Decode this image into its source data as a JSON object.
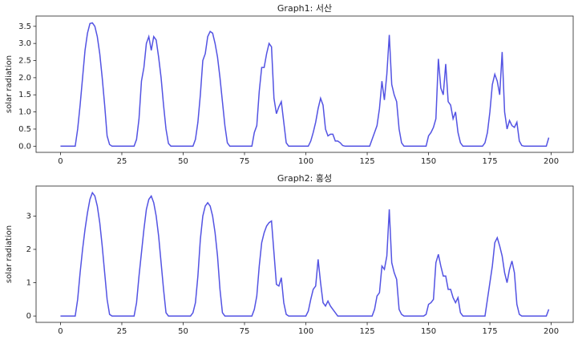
{
  "chart_data": [
    {
      "type": "line",
      "title": "Graph1: 서산",
      "ylabel": "solar radiation",
      "color": "#4040e0",
      "x": [
        0,
        6,
        7,
        8,
        9,
        10,
        11,
        12,
        13,
        14,
        15,
        16,
        17,
        18,
        19,
        20,
        21,
        30,
        31,
        32,
        33,
        34,
        35,
        36,
        37,
        38,
        39,
        40,
        41,
        42,
        43,
        44,
        45,
        54,
        55,
        56,
        57,
        58,
        59,
        60,
        61,
        62,
        63,
        64,
        65,
        66,
        67,
        68,
        69,
        78,
        79,
        80,
        81,
        82,
        83,
        84,
        85,
        86,
        87,
        88,
        89,
        90,
        91,
        92,
        93,
        101,
        102,
        103,
        104,
        105,
        106,
        107,
        108,
        109,
        110,
        111,
        112,
        113,
        114,
        115,
        116,
        126,
        127,
        128,
        129,
        130,
        131,
        132,
        133,
        134,
        135,
        136,
        137,
        138,
        139,
        140,
        149,
        150,
        151,
        152,
        153,
        154,
        155,
        156,
        157,
        158,
        159,
        160,
        161,
        162,
        163,
        164,
        172,
        173,
        174,
        175,
        176,
        177,
        178,
        179,
        180,
        181,
        182,
        183,
        184,
        185,
        186,
        187,
        188,
        189,
        198,
        199
      ],
      "values": [
        0,
        0,
        0.5,
        1.2,
        2.0,
        2.8,
        3.3,
        3.58,
        3.6,
        3.5,
        3.2,
        2.7,
        2.0,
        1.2,
        0.3,
        0.05,
        0,
        0,
        0.2,
        0.8,
        1.9,
        2.3,
        3.0,
        3.2,
        2.8,
        3.2,
        3.1,
        2.6,
        2.0,
        1.2,
        0.5,
        0.08,
        0,
        0,
        0.2,
        0.7,
        1.5,
        2.5,
        2.7,
        3.2,
        3.35,
        3.3,
        3.0,
        2.6,
        2.0,
        1.3,
        0.6,
        0.1,
        0,
        0,
        0.4,
        0.6,
        1.6,
        2.3,
        2.3,
        2.7,
        3.0,
        2.9,
        1.4,
        0.95,
        1.15,
        1.3,
        0.7,
        0.1,
        0,
        0,
        0.15,
        0.4,
        0.7,
        1.1,
        1.4,
        1.2,
        0.5,
        0.3,
        0.35,
        0.35,
        0.15,
        0.15,
        0.1,
        0.02,
        0,
        0,
        0.2,
        0.4,
        0.6,
        1.1,
        1.9,
        1.35,
        2.1,
        3.25,
        1.8,
        1.5,
        1.3,
        0.5,
        0.1,
        0,
        0,
        0.3,
        0.4,
        0.55,
        0.8,
        2.55,
        1.7,
        1.5,
        2.4,
        1.3,
        1.2,
        0.8,
        1.0,
        0.4,
        0.1,
        0,
        0,
        0.1,
        0.4,
        1.0,
        1.8,
        2.1,
        1.9,
        1.5,
        2.75,
        1.0,
        0.5,
        0.75,
        0.6,
        0.55,
        0.7,
        0.15,
        0.02,
        0,
        0,
        0.25
      ],
      "xlim": [
        -9.95,
        208.95
      ],
      "xticks": [
        0,
        25,
        50,
        75,
        100,
        125,
        150,
        175,
        200
      ],
      "ylim": [
        -0.18,
        3.8
      ],
      "yticks": [
        {
          "value": 0,
          "label": "0.0"
        },
        0.5,
        {
          "value": 1,
          "label": "1.0"
        },
        1.5,
        {
          "value": 2,
          "label": "2.0"
        },
        2.5,
        {
          "value": 3,
          "label": "3.0"
        },
        3.5
      ]
    },
    {
      "type": "line",
      "title": "Graph2: 홍성",
      "ylabel": "solar radiation",
      "color": "#4040e0",
      "x": [
        0,
        6,
        7,
        8,
        9,
        10,
        11,
        12,
        13,
        14,
        15,
        16,
        17,
        18,
        19,
        20,
        21,
        30,
        31,
        32,
        33,
        34,
        35,
        36,
        37,
        38,
        39,
        40,
        41,
        42,
        43,
        44,
        53,
        54,
        55,
        56,
        57,
        58,
        59,
        60,
        61,
        62,
        63,
        64,
        65,
        66,
        67,
        78,
        79,
        80,
        81,
        82,
        83,
        84,
        85,
        86,
        87,
        88,
        89,
        90,
        91,
        92,
        93,
        100,
        101,
        102,
        103,
        104,
        105,
        106,
        107,
        108,
        109,
        110,
        111,
        112,
        113,
        127,
        128,
        129,
        130,
        131,
        132,
        133,
        134,
        135,
        136,
        137,
        138,
        139,
        140,
        148,
        149,
        150,
        151,
        152,
        153,
        154,
        155,
        156,
        157,
        158,
        159,
        160,
        161,
        162,
        163,
        164,
        173,
        174,
        175,
        176,
        177,
        178,
        179,
        180,
        181,
        182,
        183,
        184,
        185,
        186,
        187,
        188,
        198,
        199
      ],
      "values": [
        0,
        0,
        0.5,
        1.3,
        2.0,
        2.6,
        3.1,
        3.5,
        3.7,
        3.6,
        3.3,
        2.8,
        2.1,
        1.3,
        0.5,
        0.05,
        0,
        0,
        0.4,
        1.2,
        1.9,
        2.6,
        3.2,
        3.5,
        3.6,
        3.4,
        3.0,
        2.4,
        1.6,
        0.8,
        0.1,
        0,
        0,
        0.1,
        0.4,
        1.2,
        2.3,
        3.0,
        3.3,
        3.4,
        3.3,
        3.0,
        2.5,
        1.8,
        0.8,
        0.1,
        0,
        0,
        0.2,
        0.6,
        1.5,
        2.2,
        2.5,
        2.7,
        2.8,
        2.85,
        1.9,
        0.95,
        0.9,
        1.15,
        0.4,
        0.05,
        0,
        0,
        0.15,
        0.5,
        0.8,
        0.9,
        1.7,
        1.0,
        0.4,
        0.3,
        0.45,
        0.3,
        0.2,
        0.1,
        0,
        0,
        0.2,
        0.6,
        0.7,
        1.5,
        1.4,
        1.8,
        3.2,
        1.6,
        1.3,
        1.1,
        0.2,
        0.05,
        0,
        0,
        0.05,
        0.35,
        0.4,
        0.5,
        1.6,
        1.85,
        1.5,
        1.2,
        1.2,
        0.8,
        0.8,
        0.55,
        0.4,
        0.55,
        0.1,
        0,
        0,
        0.5,
        1.0,
        1.5,
        2.2,
        2.35,
        2.1,
        1.8,
        1.3,
        1.0,
        1.4,
        1.65,
        1.3,
        0.35,
        0.05,
        0,
        0,
        0.2
      ],
      "xlim": [
        -9.95,
        208.95
      ],
      "xticks": [
        0,
        25,
        50,
        75,
        100,
        125,
        150,
        175,
        200
      ],
      "ylim": [
        -0.19,
        3.9
      ],
      "yticks": [
        0,
        1,
        2,
        3
      ]
    }
  ]
}
